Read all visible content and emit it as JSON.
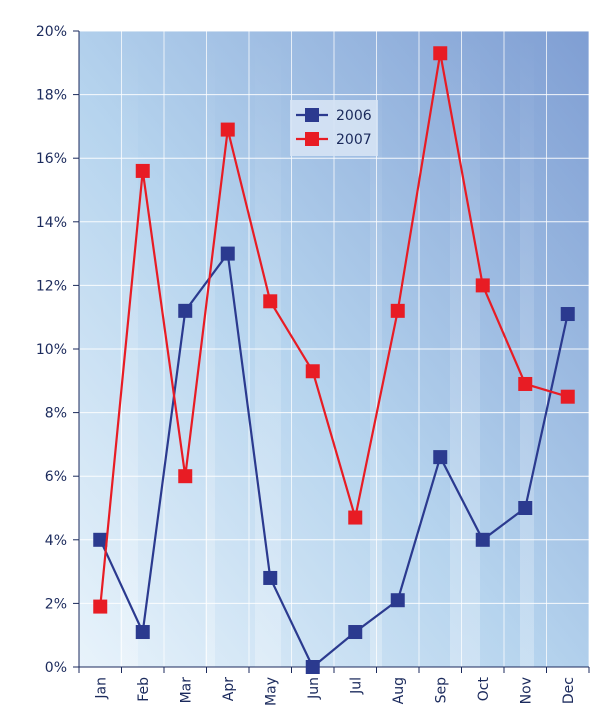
{
  "chart_data": {
    "type": "line",
    "categories": [
      "Jan",
      "Feb",
      "Mar",
      "Apr",
      "May",
      "Jun",
      "Jul",
      "Aug",
      "Sep",
      "Oct",
      "Nov",
      "Dec"
    ],
    "ylim": [
      0,
      20
    ],
    "yticks": [
      0,
      2,
      4,
      6,
      8,
      10,
      12,
      14,
      16,
      18,
      20
    ],
    "ytick_labels": [
      "0%",
      "2%",
      "4%",
      "6%",
      "8%",
      "10%",
      "12%",
      "14%",
      "16%",
      "18%",
      "20%"
    ],
    "grid": true,
    "legend_position": "top-center",
    "series": [
      {
        "name": "2006",
        "color": "#2b3a8f",
        "values": [
          4.0,
          1.1,
          11.2,
          13.0,
          2.8,
          0.0,
          1.1,
          2.1,
          6.6,
          4.0,
          5.0,
          11.1
        ]
      },
      {
        "name": "2007",
        "color": "#e81c24",
        "values": [
          1.9,
          15.6,
          6.0,
          16.9,
          11.5,
          9.3,
          4.7,
          11.2,
          19.3,
          12.0,
          8.9,
          8.5
        ]
      }
    ],
    "title": "",
    "xlabel": "",
    "ylabel": ""
  }
}
